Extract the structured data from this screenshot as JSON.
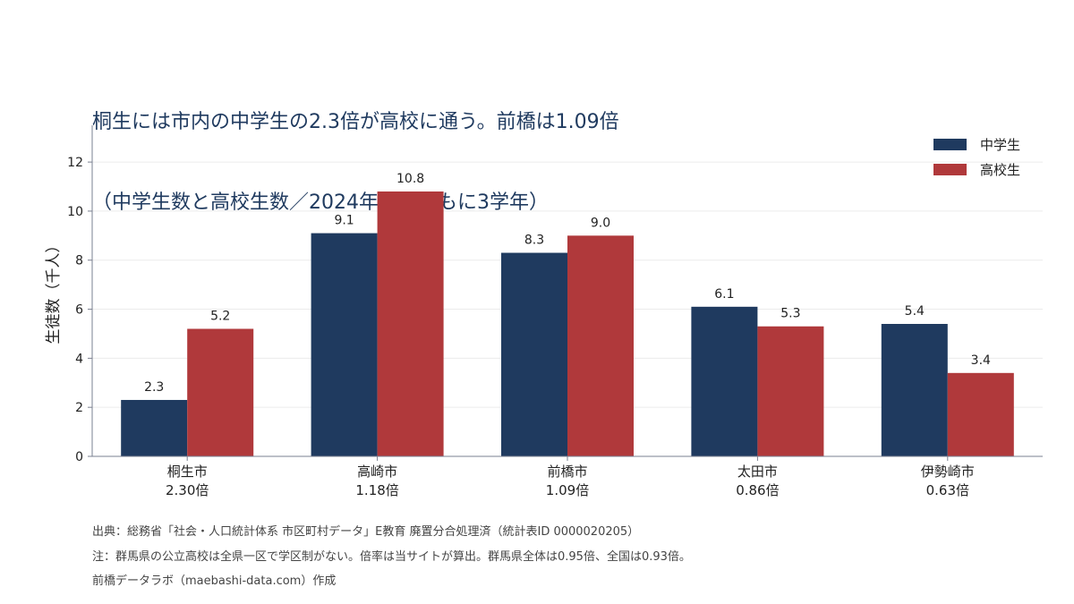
{
  "title_lines": [
    "桐生には市内の中学生の2.3倍が高校に通う。前橋は1.09倍",
    "（中学生数と高校生数／2024年度・ともに3学年）"
  ],
  "colors": {
    "series1": "#1f3a5f",
    "series2": "#b0393b",
    "axis": "#7a8090",
    "grid": "#ececec"
  },
  "chart_data": {
    "type": "bar",
    "title": "桐生には市内の中学生の2.3倍が高校に通う。前橋は1.09倍（中学生数と高校生数／2024年度・ともに3学年）",
    "categories": [
      "桐生市",
      "高崎市",
      "前橋市",
      "太田市",
      "伊勢崎市"
    ],
    "category_sublabels": [
      "2.30倍",
      "1.18倍",
      "1.09倍",
      "0.86倍",
      "0.63倍"
    ],
    "series": [
      {
        "name": "中学生",
        "values": [
          2.3,
          9.1,
          8.3,
          6.1,
          5.4
        ]
      },
      {
        "name": "高校生",
        "values": [
          5.2,
          10.8,
          9.0,
          5.3,
          3.4
        ]
      }
    ],
    "xlabel": "",
    "ylabel": "生徒数（千人）",
    "ylim": [
      0,
      13.5
    ],
    "yticks": [
      0,
      2,
      4,
      6,
      8,
      10,
      12
    ],
    "grid": true,
    "legend": "top-right"
  },
  "footer": [
    "出典：総務省「社会・人口統計体系 市区町村データ」E教育 廃置分合処理済（統計表ID 0000020205）",
    "注：群馬県の公立高校は全県一区で学区制がない。倍率は当サイトが算出。群馬県全体は0.95倍、全国は0.93倍。",
    "前橋データラボ（maebashi-data.com）作成"
  ]
}
